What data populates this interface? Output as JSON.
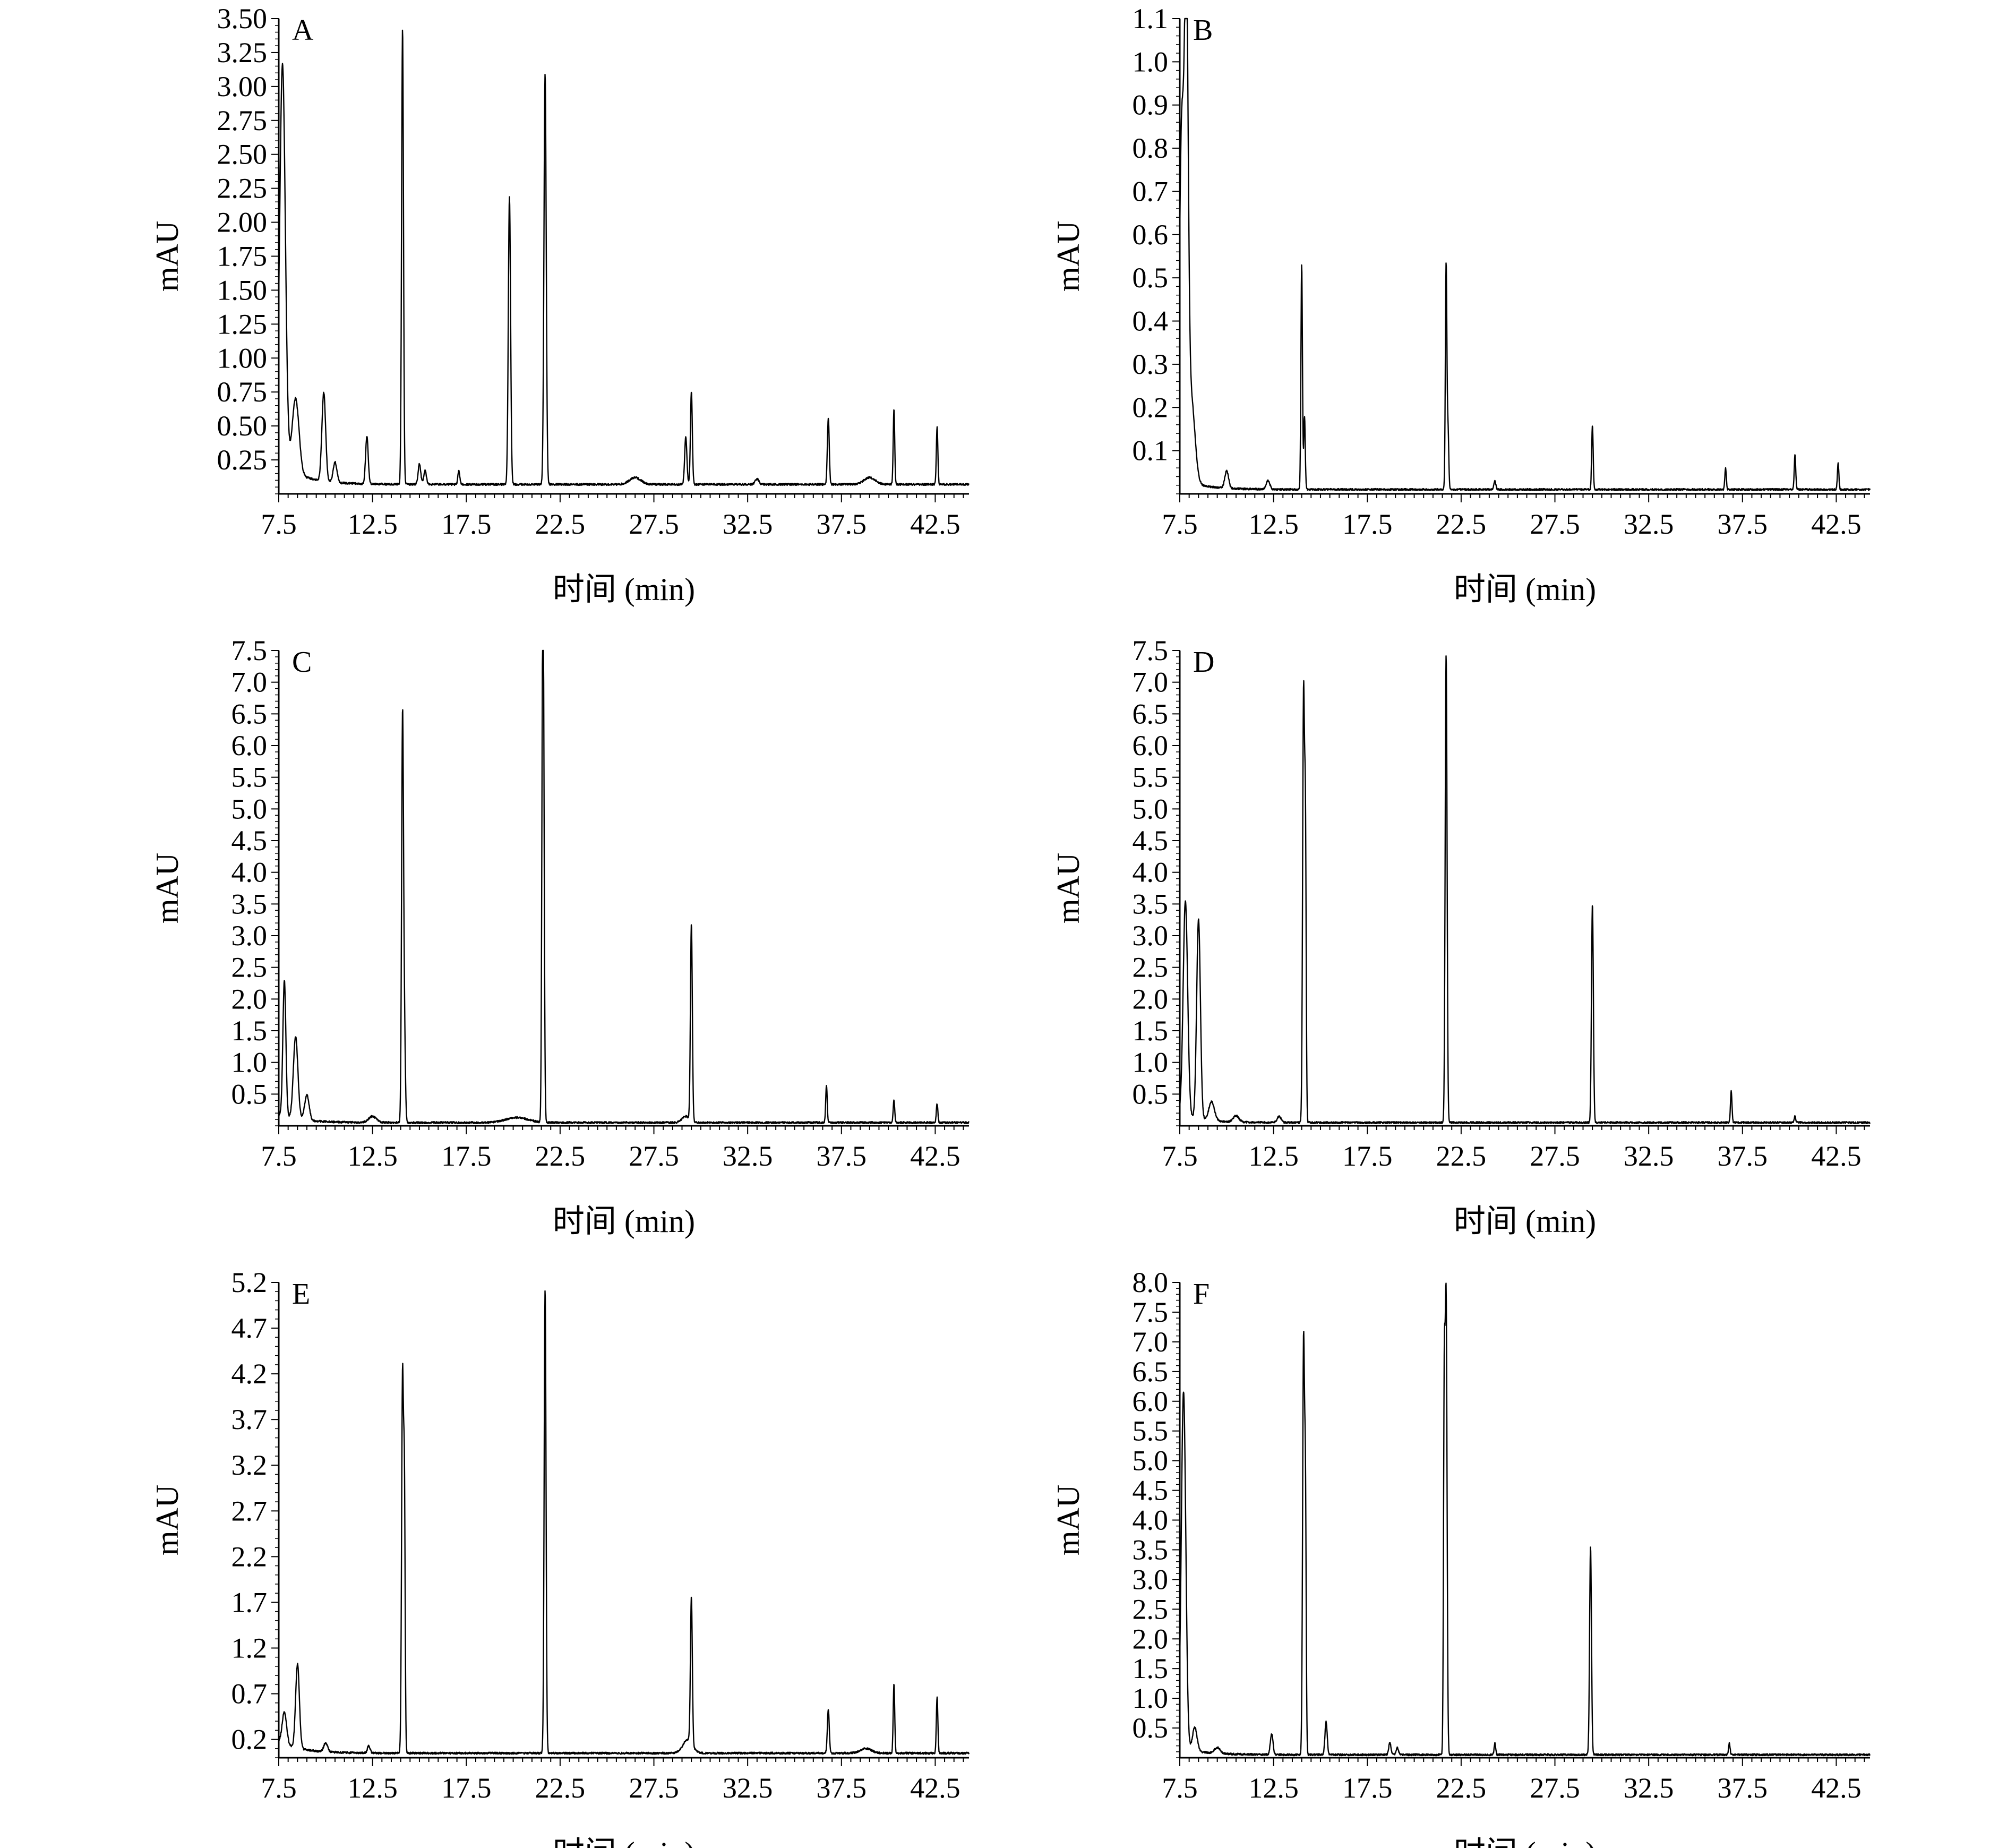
{
  "chart_data": [
    {
      "type": "line",
      "panel_label": "A",
      "xlabel": "时间 (min)",
      "ylabel": "mAU",
      "xlim": [
        7.5,
        44.3
      ],
      "ylim": [
        0.0,
        3.5
      ],
      "x_ticks": [
        "7.5",
        "12.5",
        "17.5",
        "22.5",
        "27.5",
        "32.5",
        "37.5",
        "42.5"
      ],
      "y_ticks": [
        "0.25",
        "0.50",
        "0.75",
        "1.00",
        "1.25",
        "1.50",
        "1.75",
        "2.00",
        "2.25",
        "2.50",
        "2.75",
        "3.00",
        "3.25",
        "3.50"
      ],
      "baseline": 0.07,
      "peaks": [
        {
          "x": 7.7,
          "y": 2.95,
          "w": 0.15
        },
        {
          "x": 8.4,
          "y": 0.55,
          "w": 0.18
        },
        {
          "x": 9.9,
          "y": 0.65,
          "w": 0.1
        },
        {
          "x": 10.5,
          "y": 0.15,
          "w": 0.1
        },
        {
          "x": 12.2,
          "y": 0.35,
          "w": 0.07
        },
        {
          "x": 14.1,
          "y": 3.35,
          "w": 0.05
        },
        {
          "x": 15.0,
          "y": 0.15,
          "w": 0.07
        },
        {
          "x": 15.3,
          "y": 0.1,
          "w": 0.07
        },
        {
          "x": 17.1,
          "y": 0.1,
          "w": 0.05
        },
        {
          "x": 19.8,
          "y": 2.12,
          "w": 0.06
        },
        {
          "x": 21.7,
          "y": 3.02,
          "w": 0.06
        },
        {
          "x": 26.5,
          "y": 0.05,
          "w": 0.3
        },
        {
          "x": 29.2,
          "y": 0.35,
          "w": 0.06
        },
        {
          "x": 29.5,
          "y": 0.68,
          "w": 0.05
        },
        {
          "x": 33.0,
          "y": 0.04,
          "w": 0.1
        },
        {
          "x": 36.8,
          "y": 0.48,
          "w": 0.05
        },
        {
          "x": 39.0,
          "y": 0.05,
          "w": 0.3
        },
        {
          "x": 40.3,
          "y": 0.55,
          "w": 0.04
        },
        {
          "x": 42.6,
          "y": 0.42,
          "w": 0.04
        }
      ]
    },
    {
      "type": "line",
      "panel_label": "B",
      "xlabel": "时间 (min)",
      "ylabel": "mAU",
      "xlim": [
        7.5,
        44.3
      ],
      "ylim": [
        0.0,
        1.1
      ],
      "x_ticks": [
        "7.5",
        "12.5",
        "17.5",
        "22.5",
        "27.5",
        "32.5",
        "37.5",
        "42.5"
      ],
      "y_ticks": [
        "0.1",
        "0.2",
        "0.3",
        "0.4",
        "0.5",
        "0.6",
        "0.7",
        "0.8",
        "0.9",
        "1.0",
        "1.1"
      ],
      "baseline": 0.01,
      "peaks": [
        {
          "x": 7.6,
          "y": 0.8,
          "w": 0.12
        },
        {
          "x": 7.85,
          "y": 1.05,
          "w": 0.1
        },
        {
          "x": 8.1,
          "y": 0.2,
          "w": 0.2
        },
        {
          "x": 10.0,
          "y": 0.04,
          "w": 0.1
        },
        {
          "x": 12.2,
          "y": 0.02,
          "w": 0.1
        },
        {
          "x": 14.0,
          "y": 0.52,
          "w": 0.04
        },
        {
          "x": 14.15,
          "y": 0.17,
          "w": 0.04
        },
        {
          "x": 21.7,
          "y": 0.52,
          "w": 0.04
        },
        {
          "x": 21.8,
          "y": 0.14,
          "w": 0.04
        },
        {
          "x": 24.3,
          "y": 0.02,
          "w": 0.05
        },
        {
          "x": 29.5,
          "y": 0.15,
          "w": 0.04
        },
        {
          "x": 36.6,
          "y": 0.05,
          "w": 0.04
        },
        {
          "x": 40.3,
          "y": 0.08,
          "w": 0.04
        },
        {
          "x": 42.6,
          "y": 0.06,
          "w": 0.04
        }
      ]
    },
    {
      "type": "line",
      "panel_label": "C",
      "xlabel": "时间 (min)",
      "ylabel": "mAU",
      "xlim": [
        7.5,
        44.3
      ],
      "ylim": [
        0.0,
        7.5
      ],
      "x_ticks": [
        "7.5",
        "12.5",
        "17.5",
        "22.5",
        "27.5",
        "32.5",
        "37.5",
        "42.5"
      ],
      "y_ticks": [
        "0.5",
        "1.0",
        "1.5",
        "2.0",
        "2.5",
        "3.0",
        "3.5",
        "4.0",
        "4.5",
        "5.0",
        "5.5",
        "6.0",
        "6.5",
        "7.0",
        "7.5"
      ],
      "baseline": 0.05,
      "peaks": [
        {
          "x": 7.8,
          "y": 2.15,
          "w": 0.08
        },
        {
          "x": 8.4,
          "y": 1.3,
          "w": 0.12
        },
        {
          "x": 9.0,
          "y": 0.4,
          "w": 0.12
        },
        {
          "x": 12.5,
          "y": 0.1,
          "w": 0.2
        },
        {
          "x": 14.1,
          "y": 6.35,
          "w": 0.05
        },
        {
          "x": 14.2,
          "y": 1.4,
          "w": 0.05
        },
        {
          "x": 20.2,
          "y": 0.08,
          "w": 0.6
        },
        {
          "x": 21.6,
          "y": 7.45,
          "w": 0.05
        },
        {
          "x": 21.55,
          "y": 2.3,
          "w": 0.04
        },
        {
          "x": 29.2,
          "y": 0.1,
          "w": 0.2
        },
        {
          "x": 29.5,
          "y": 3.1,
          "w": 0.05
        },
        {
          "x": 36.7,
          "y": 0.6,
          "w": 0.04
        },
        {
          "x": 40.3,
          "y": 0.35,
          "w": 0.04
        },
        {
          "x": 42.6,
          "y": 0.3,
          "w": 0.04
        }
      ]
    },
    {
      "type": "line",
      "panel_label": "D",
      "xlabel": "时间 (min)",
      "ylabel": "mAU",
      "xlim": [
        7.5,
        44.3
      ],
      "ylim": [
        0.0,
        7.5
      ],
      "x_ticks": [
        "7.5",
        "12.5",
        "17.5",
        "22.5",
        "27.5",
        "32.5",
        "37.5",
        "42.5"
      ],
      "y_ticks": [
        "0.5",
        "1.0",
        "1.5",
        "2.0",
        "2.5",
        "3.0",
        "3.5",
        "4.0",
        "4.5",
        "5.0",
        "5.5",
        "6.0",
        "6.5",
        "7.0",
        "7.5"
      ],
      "baseline": 0.05,
      "peaks": [
        {
          "x": 7.8,
          "y": 3.4,
          "w": 0.12
        },
        {
          "x": 8.5,
          "y": 3.15,
          "w": 0.1
        },
        {
          "x": 9.2,
          "y": 0.3,
          "w": 0.15
        },
        {
          "x": 10.5,
          "y": 0.1,
          "w": 0.15
        },
        {
          "x": 12.8,
          "y": 0.1,
          "w": 0.1
        },
        {
          "x": 14.1,
          "y": 6.75,
          "w": 0.05
        },
        {
          "x": 14.2,
          "y": 4.3,
          "w": 0.04
        },
        {
          "x": 21.7,
          "y": 7.4,
          "w": 0.05
        },
        {
          "x": 29.5,
          "y": 3.45,
          "w": 0.05
        },
        {
          "x": 36.9,
          "y": 0.5,
          "w": 0.04
        },
        {
          "x": 40.3,
          "y": 0.1,
          "w": 0.04
        }
      ]
    },
    {
      "type": "line",
      "panel_label": "E",
      "xlabel": "时间 (min)",
      "ylabel": "mAU",
      "xlim": [
        7.5,
        44.3
      ],
      "ylim": [
        0.0,
        5.2
      ],
      "x_ticks": [
        "7.5",
        "12.5",
        "17.5",
        "22.5",
        "27.5",
        "32.5",
        "37.5",
        "42.5"
      ],
      "y_ticks": [
        "0.2",
        "0.7",
        "1.2",
        "1.7",
        "2.2",
        "2.7",
        "3.2",
        "3.7",
        "4.2",
        "4.7",
        "5.2"
      ],
      "baseline": 0.05,
      "peaks": [
        {
          "x": 7.8,
          "y": 0.35,
          "w": 0.12
        },
        {
          "x": 8.5,
          "y": 0.92,
          "w": 0.1
        },
        {
          "x": 10.0,
          "y": 0.1,
          "w": 0.1
        },
        {
          "x": 12.3,
          "y": 0.08,
          "w": 0.07
        },
        {
          "x": 14.1,
          "y": 4.12,
          "w": 0.05
        },
        {
          "x": 14.2,
          "y": 2.7,
          "w": 0.04
        },
        {
          "x": 21.7,
          "y": 5.08,
          "w": 0.05
        },
        {
          "x": 29.3,
          "y": 0.15,
          "w": 0.25
        },
        {
          "x": 29.5,
          "y": 1.6,
          "w": 0.05
        },
        {
          "x": 36.8,
          "y": 0.48,
          "w": 0.05
        },
        {
          "x": 38.8,
          "y": 0.05,
          "w": 0.3
        },
        {
          "x": 40.3,
          "y": 0.75,
          "w": 0.04
        },
        {
          "x": 42.6,
          "y": 0.62,
          "w": 0.04
        }
      ]
    },
    {
      "type": "line",
      "panel_label": "F",
      "xlabel": "时间 (min)",
      "ylabel": "mAU",
      "xlim": [
        7.5,
        44.3
      ],
      "ylim": [
        0.0,
        8.0
      ],
      "x_ticks": [
        "7.5",
        "12.5",
        "17.5",
        "22.5",
        "27.5",
        "32.5",
        "37.5",
        "42.5"
      ],
      "y_ticks": [
        "0.5",
        "1.0",
        "1.5",
        "2.0",
        "2.5",
        "3.0",
        "3.5",
        "4.0",
        "4.5",
        "5.0",
        "5.5",
        "6.0",
        "6.5",
        "7.0",
        "7.5",
        "8.0"
      ],
      "baseline": 0.05,
      "peaks": [
        {
          "x": 7.7,
          "y": 6.0,
          "w": 0.12
        },
        {
          "x": 8.3,
          "y": 0.4,
          "w": 0.12
        },
        {
          "x": 9.5,
          "y": 0.1,
          "w": 0.15
        },
        {
          "x": 12.4,
          "y": 0.35,
          "w": 0.07
        },
        {
          "x": 14.1,
          "y": 6.95,
          "w": 0.05
        },
        {
          "x": 14.2,
          "y": 4.1,
          "w": 0.04
        },
        {
          "x": 15.3,
          "y": 0.55,
          "w": 0.06
        },
        {
          "x": 18.7,
          "y": 0.2,
          "w": 0.06
        },
        {
          "x": 19.1,
          "y": 0.12,
          "w": 0.06
        },
        {
          "x": 21.7,
          "y": 7.65,
          "w": 0.05
        },
        {
          "x": 21.6,
          "y": 5.8,
          "w": 0.04
        },
        {
          "x": 24.3,
          "y": 0.2,
          "w": 0.04
        },
        {
          "x": 29.4,
          "y": 3.5,
          "w": 0.05
        },
        {
          "x": 36.8,
          "y": 0.2,
          "w": 0.04
        }
      ]
    }
  ]
}
